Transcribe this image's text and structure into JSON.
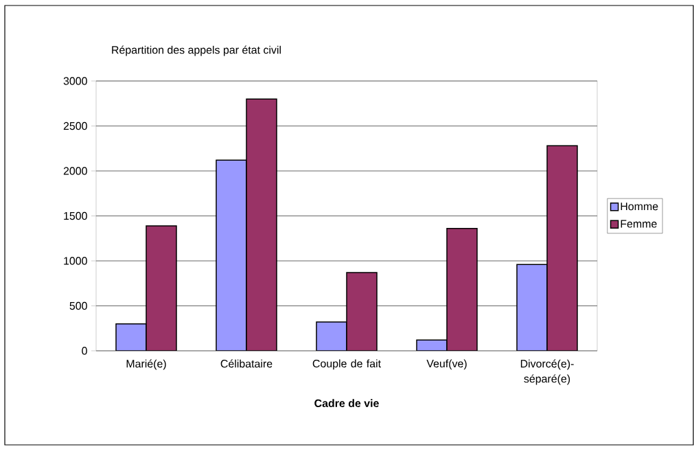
{
  "chart_data": {
    "type": "bar",
    "title": "Répartition des appels par état civil",
    "xlabel": "Cadre de vie",
    "categories": [
      "Marié(e)",
      "Célibataire",
      "Couple de fait",
      "Veuf(ve)",
      "Divorcé(e)-séparé(e)"
    ],
    "series": [
      {
        "name": "Homme",
        "color": "#9999ff",
        "values": [
          300,
          2120,
          320,
          120,
          960
        ]
      },
      {
        "name": "Femme",
        "color": "#993366",
        "values": [
          1390,
          2800,
          870,
          1360,
          2280
        ]
      }
    ],
    "ylim": [
      0,
      3000
    ],
    "yticks": [
      0,
      500,
      1000,
      1500,
      2000,
      2500,
      3000
    ],
    "grid": "y",
    "legend": "right"
  }
}
